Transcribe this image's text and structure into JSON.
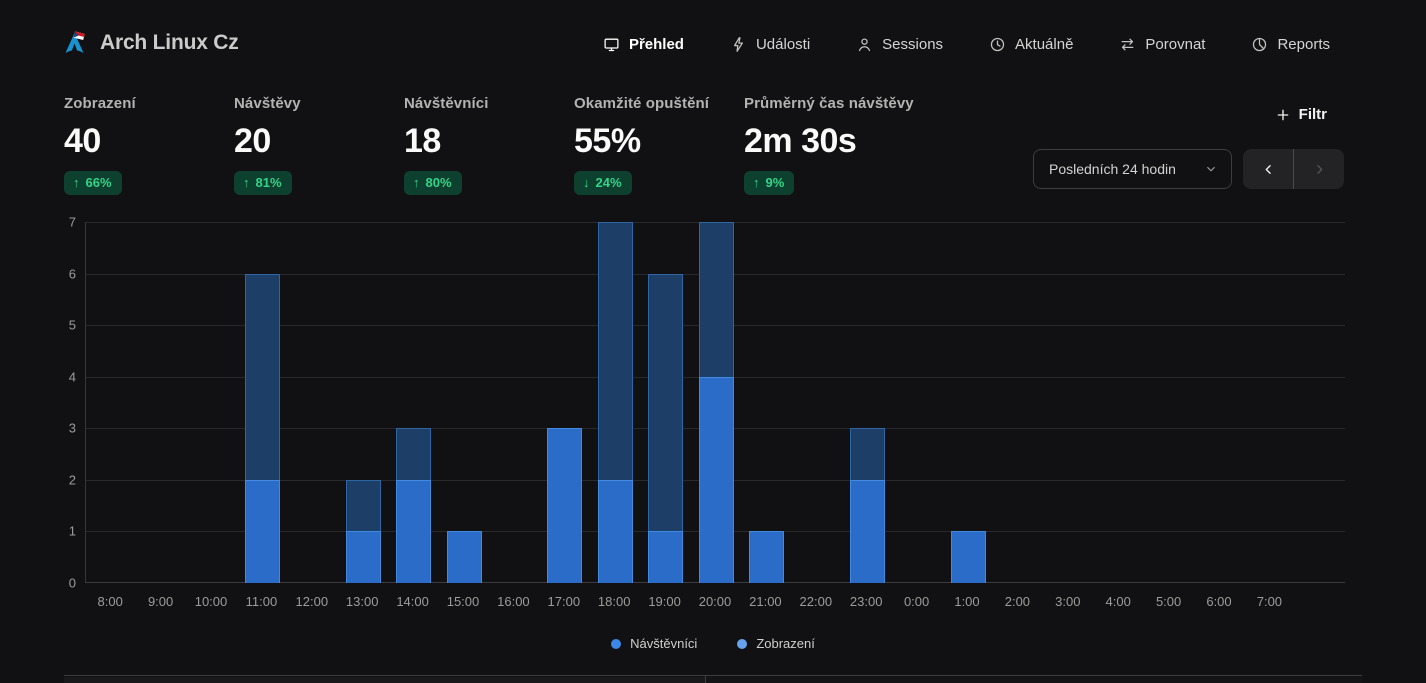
{
  "header": {
    "site_title": "Arch Linux Cz",
    "nav": [
      {
        "label": "Přehled",
        "icon": "monitor-icon",
        "active": true
      },
      {
        "label": "Události",
        "icon": "lightning-icon",
        "active": false
      },
      {
        "label": "Sessions",
        "icon": "user-icon",
        "active": false
      },
      {
        "label": "Aktuálně",
        "icon": "clock-icon",
        "active": false
      },
      {
        "label": "Porovnat",
        "icon": "compare-arrows-icon",
        "active": false
      },
      {
        "label": "Reports",
        "icon": "pie-chart-icon",
        "active": false
      }
    ]
  },
  "stats": [
    {
      "label": "Zobrazení",
      "value": "40",
      "arrow": "↑",
      "change": "66%"
    },
    {
      "label": "Návštěvy",
      "value": "20",
      "arrow": "↑",
      "change": "81%"
    },
    {
      "label": "Návštěvníci",
      "value": "18",
      "arrow": "↑",
      "change": "80%"
    },
    {
      "label": "Okamžité opuštění",
      "value": "55%",
      "arrow": "↓",
      "change": "24%"
    },
    {
      "label": "Průměrný čas návštěvy",
      "value": "2m 30s",
      "arrow": "↑",
      "change": "9%"
    }
  ],
  "toolbar": {
    "filter_label": "Filtr",
    "date_range": "Posledních 24 hodin"
  },
  "chart_data": {
    "type": "bar",
    "title": "",
    "xlabel": "",
    "ylabel": "",
    "categories": [
      "8:00",
      "9:00",
      "10:00",
      "11:00",
      "12:00",
      "13:00",
      "14:00",
      "15:00",
      "16:00",
      "17:00",
      "18:00",
      "19:00",
      "20:00",
      "21:00",
      "22:00",
      "23:00",
      "0:00",
      "1:00",
      "2:00",
      "3:00",
      "4:00",
      "5:00",
      "6:00",
      "7:00"
    ],
    "series": [
      {
        "name": "Zobrazení",
        "values": [
          0,
          0,
          0,
          6,
          0,
          2,
          3,
          1,
          0,
          3,
          7,
          6,
          7,
          1,
          0,
          3,
          0,
          1,
          0,
          0,
          0,
          0,
          0,
          0
        ],
        "fill": "#1d3e66",
        "border": "#2e66a4"
      },
      {
        "name": "Návštěvníci",
        "values": [
          0,
          0,
          0,
          2,
          0,
          1,
          2,
          1,
          0,
          3,
          2,
          1,
          4,
          1,
          0,
          2,
          0,
          1,
          0,
          0,
          0,
          0,
          0,
          0
        ],
        "fill": "#2a6cc8",
        "border": "#4289e0"
      }
    ],
    "ylim": [
      0,
      7
    ],
    "yticks": [
      0,
      1,
      2,
      3,
      4,
      5,
      6,
      7
    ],
    "grid": true,
    "slots": 25,
    "legend_position": "bottom",
    "legend": [
      {
        "label": "Návštěvníci",
        "color": "#3a87e8"
      },
      {
        "label": "Zobrazení",
        "color": "#66a3ec"
      }
    ]
  },
  "colors": {
    "background": "#111113",
    "accent_blue": "#2a6cc8",
    "views_navy": "#1d3e66",
    "badge_green_bg": "#0e4030",
    "badge_green_text": "#33d488",
    "arch_logo_blue": "#1793d1"
  }
}
